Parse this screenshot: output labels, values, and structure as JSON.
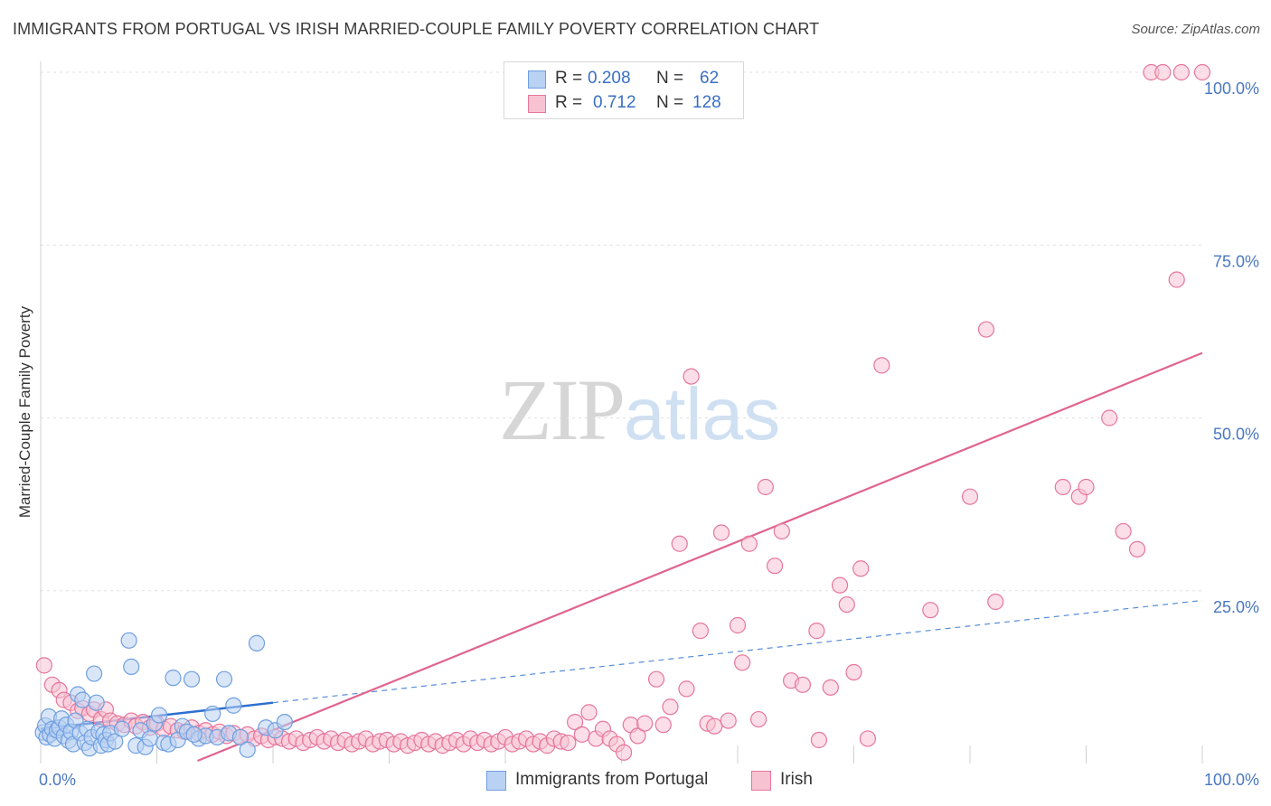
{
  "title": "IMMIGRANTS FROM PORTUGAL VS IRISH MARRIED-COUPLE FAMILY POVERTY CORRELATION CHART",
  "source": "Source: ZipAtlas.com",
  "watermark": {
    "zip": "ZIP",
    "atlas": "atlas"
  },
  "colors": {
    "blue": "#6f9fe0",
    "blue_fill": "#b9d1f2",
    "pink": "#e6769b",
    "pink_fill": "#f7c3d3",
    "blue_line": "#2d6fd0",
    "pink_line": "#e0648e"
  },
  "legend": {
    "rows": [
      {
        "r_label": "R =",
        "r_value": "0.208",
        "n_label": "N =",
        "n_value": "62"
      },
      {
        "r_label": "R =",
        "r_value": "0.712",
        "n_label": "N =",
        "n_value": "128"
      }
    ]
  },
  "bottom_legend": {
    "series1": "Immigrants from Portugal",
    "series2": "Irish"
  },
  "chart_data": {
    "type": "scatter",
    "title": "IMMIGRANTS FROM PORTUGAL VS IRISH MARRIED-COUPLE FAMILY POVERTY CORRELATION CHART",
    "xlabel": "",
    "ylabel": "Married-Couple Family Poverty",
    "xlim": [
      0,
      100
    ],
    "ylim": [
      0,
      100
    ],
    "x_tick_labels": [
      "0.0%",
      "100.0%"
    ],
    "y_tick_labels": [
      "25.0%",
      "50.0%",
      "75.0%",
      "100.0%"
    ],
    "y_ticks": [
      25,
      50,
      75,
      100
    ],
    "grid": true,
    "series": [
      {
        "name": "Immigrants from Portugal",
        "r": 0.208,
        "n": 62,
        "trend": {
          "solid": [
            [
              0,
              5.0
            ],
            [
              20,
              8.8
            ]
          ],
          "dashed": [
            [
              20,
              8.8
            ],
            [
              100,
              23.6
            ]
          ]
        },
        "points": [
          [
            0.2,
            4.5
          ],
          [
            0.4,
            5.5
          ],
          [
            0.5,
            3.8
          ],
          [
            0.7,
            6.8
          ],
          [
            0.8,
            4.2
          ],
          [
            1.0,
            5.0
          ],
          [
            1.2,
            3.6
          ],
          [
            1.4,
            4.8
          ],
          [
            1.6,
            5.2
          ],
          [
            1.8,
            6.5
          ],
          [
            2.0,
            4.0
          ],
          [
            2.2,
            5.6
          ],
          [
            2.4,
            3.3
          ],
          [
            2.6,
            4.6
          ],
          [
            2.8,
            2.8
          ],
          [
            3.0,
            6.2
          ],
          [
            3.2,
            10.0
          ],
          [
            3.4,
            4.4
          ],
          [
            3.6,
            9.2
          ],
          [
            3.8,
            3.0
          ],
          [
            4.0,
            5.0
          ],
          [
            4.2,
            2.2
          ],
          [
            4.4,
            3.8
          ],
          [
            4.6,
            13.0
          ],
          [
            4.8,
            8.8
          ],
          [
            5.0,
            4.6
          ],
          [
            5.2,
            2.6
          ],
          [
            5.4,
            4.2
          ],
          [
            5.6,
            3.4
          ],
          [
            5.8,
            2.8
          ],
          [
            6.0,
            4.4
          ],
          [
            6.4,
            3.2
          ],
          [
            7.0,
            5.0
          ],
          [
            7.6,
            17.8
          ],
          [
            7.8,
            14.0
          ],
          [
            8.2,
            2.6
          ],
          [
            8.6,
            4.8
          ],
          [
            9.0,
            2.4
          ],
          [
            9.4,
            3.6
          ],
          [
            9.8,
            5.8
          ],
          [
            10.2,
            7.0
          ],
          [
            10.6,
            3.0
          ],
          [
            11.0,
            2.8
          ],
          [
            11.4,
            12.4
          ],
          [
            11.8,
            3.4
          ],
          [
            12.2,
            5.4
          ],
          [
            12.6,
            4.6
          ],
          [
            13.0,
            12.2
          ],
          [
            13.6,
            3.6
          ],
          [
            14.2,
            4.0
          ],
          [
            14.8,
            7.2
          ],
          [
            15.2,
            3.8
          ],
          [
            15.8,
            12.2
          ],
          [
            16.2,
            4.4
          ],
          [
            16.6,
            8.4
          ],
          [
            17.2,
            3.8
          ],
          [
            17.8,
            2.0
          ],
          [
            18.6,
            17.4
          ],
          [
            19.4,
            5.2
          ],
          [
            20.2,
            4.8
          ],
          [
            21.0,
            6.0
          ],
          [
            13.2,
            4.2
          ]
        ]
      },
      {
        "name": "Irish",
        "r": 0.712,
        "n": 128,
        "trend": {
          "solid": [
            [
              13.5,
              0
            ],
            [
              100,
              59.4
            ]
          ]
        },
        "points": [
          [
            0.3,
            14.2
          ],
          [
            1.0,
            11.4
          ],
          [
            1.6,
            10.6
          ],
          [
            2.0,
            9.2
          ],
          [
            2.6,
            8.8
          ],
          [
            3.2,
            7.6
          ],
          [
            3.6,
            8.0
          ],
          [
            4.2,
            7.2
          ],
          [
            4.6,
            7.8
          ],
          [
            5.2,
            6.4
          ],
          [
            5.6,
            7.8
          ],
          [
            6.0,
            6.2
          ],
          [
            6.6,
            5.8
          ],
          [
            7.2,
            5.6
          ],
          [
            7.8,
            6.2
          ],
          [
            8.2,
            5.4
          ],
          [
            8.8,
            6.0
          ],
          [
            9.4,
            5.2
          ],
          [
            10.0,
            5.8
          ],
          [
            10.6,
            5.0
          ],
          [
            11.2,
            5.4
          ],
          [
            11.8,
            4.8
          ],
          [
            12.4,
            4.6
          ],
          [
            13.0,
            5.2
          ],
          [
            13.6,
            4.4
          ],
          [
            14.2,
            4.8
          ],
          [
            14.8,
            4.2
          ],
          [
            15.4,
            4.6
          ],
          [
            16.0,
            4.0
          ],
          [
            16.6,
            4.4
          ],
          [
            17.2,
            3.8
          ],
          [
            17.8,
            4.2
          ],
          [
            18.4,
            3.6
          ],
          [
            19.0,
            4.0
          ],
          [
            19.6,
            3.4
          ],
          [
            20.2,
            3.8
          ],
          [
            20.8,
            3.6
          ],
          [
            21.4,
            3.2
          ],
          [
            22.0,
            3.6
          ],
          [
            22.6,
            3.0
          ],
          [
            23.2,
            3.4
          ],
          [
            23.8,
            3.8
          ],
          [
            24.4,
            3.2
          ],
          [
            25.0,
            3.6
          ],
          [
            25.6,
            3.0
          ],
          [
            26.2,
            3.4
          ],
          [
            26.8,
            2.8
          ],
          [
            27.4,
            3.2
          ],
          [
            28.0,
            3.6
          ],
          [
            28.6,
            2.8
          ],
          [
            29.2,
            3.2
          ],
          [
            29.8,
            3.4
          ],
          [
            30.4,
            2.8
          ],
          [
            31.0,
            3.2
          ],
          [
            31.6,
            2.6
          ],
          [
            32.2,
            3.0
          ],
          [
            32.8,
            3.4
          ],
          [
            33.4,
            2.8
          ],
          [
            34.0,
            3.2
          ],
          [
            34.6,
            2.6
          ],
          [
            35.2,
            3.0
          ],
          [
            35.8,
            3.4
          ],
          [
            36.4,
            2.8
          ],
          [
            37.0,
            3.6
          ],
          [
            37.6,
            3.0
          ],
          [
            38.2,
            3.4
          ],
          [
            38.8,
            2.8
          ],
          [
            39.4,
            3.2
          ],
          [
            40.0,
            3.8
          ],
          [
            40.6,
            2.8
          ],
          [
            41.2,
            3.2
          ],
          [
            41.8,
            3.6
          ],
          [
            42.4,
            2.8
          ],
          [
            43.0,
            3.2
          ],
          [
            43.6,
            2.6
          ],
          [
            44.2,
            3.6
          ],
          [
            44.8,
            3.2
          ],
          [
            45.4,
            3.0
          ],
          [
            46.0,
            6.0
          ],
          [
            46.6,
            4.2
          ],
          [
            47.2,
            7.4
          ],
          [
            47.8,
            3.6
          ],
          [
            48.4,
            5.0
          ],
          [
            49.0,
            3.6
          ],
          [
            49.6,
            2.8
          ],
          [
            50.2,
            1.6
          ],
          [
            50.8,
            5.6
          ],
          [
            51.4,
            4.0
          ],
          [
            52.0,
            5.8
          ],
          [
            53.0,
            12.2
          ],
          [
            53.6,
            5.6
          ],
          [
            54.2,
            8.2
          ],
          [
            56.0,
            56.0
          ],
          [
            55.0,
            31.8
          ],
          [
            55.6,
            10.8
          ],
          [
            56.8,
            19.2
          ],
          [
            57.4,
            5.8
          ],
          [
            58.0,
            5.4
          ],
          [
            58.6,
            33.4
          ],
          [
            59.2,
            6.2
          ],
          [
            60.0,
            20.0
          ],
          [
            60.4,
            14.6
          ],
          [
            61.0,
            31.8
          ],
          [
            61.8,
            6.4
          ],
          [
            62.4,
            40.0
          ],
          [
            63.2,
            28.6
          ],
          [
            63.8,
            33.6
          ],
          [
            64.6,
            12.0
          ],
          [
            65.6,
            11.4
          ],
          [
            66.8,
            19.2
          ],
          [
            67.0,
            3.4
          ],
          [
            68.0,
            11.0
          ],
          [
            68.8,
            25.8
          ],
          [
            69.4,
            23.0
          ],
          [
            70.0,
            13.2
          ],
          [
            70.6,
            28.2
          ],
          [
            71.2,
            3.6
          ],
          [
            72.4,
            57.6
          ],
          [
            76.6,
            22.2
          ],
          [
            80.0,
            38.6
          ],
          [
            81.4,
            62.8
          ],
          [
            82.2,
            23.4
          ],
          [
            88.0,
            40.0
          ],
          [
            89.4,
            38.6
          ],
          [
            90.0,
            40.0
          ],
          [
            92.0,
            50.0
          ],
          [
            93.2,
            33.6
          ],
          [
            94.4,
            31.0
          ],
          [
            95.6,
            100
          ],
          [
            97.8,
            70.0
          ],
          [
            96.6,
            100
          ],
          [
            98.2,
            100
          ],
          [
            100,
            100
          ]
        ]
      }
    ]
  }
}
